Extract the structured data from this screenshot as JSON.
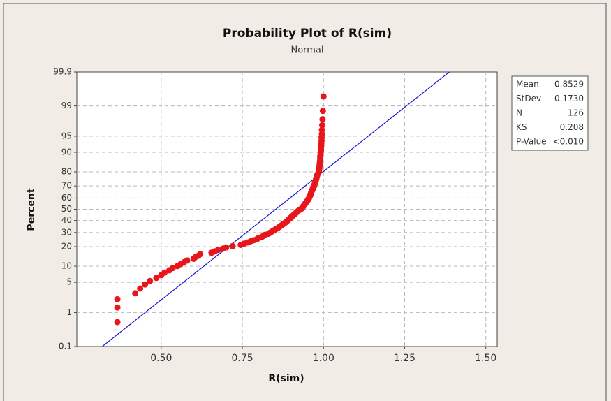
{
  "chart_data": {
    "type": "probability-plot",
    "title": "Probability Plot of R(sim)",
    "subtitle": "Normal",
    "x_label": "R(sim)",
    "y_label": "Percent",
    "scale": "normal-probability",
    "xlim": [
      0.24,
      1.535
    ],
    "xticks": [
      {
        "value": 0.5,
        "label": "0.50"
      },
      {
        "value": 0.75,
        "label": "0.75"
      },
      {
        "value": 1.0,
        "label": "1.00"
      },
      {
        "value": 1.25,
        "label": "1.25"
      },
      {
        "value": 1.5,
        "label": "1.50"
      }
    ],
    "ylim": [
      0.1,
      99.9
    ],
    "yticks": [
      0.1,
      1,
      5,
      10,
      20,
      30,
      40,
      50,
      60,
      70,
      80,
      90,
      95,
      99,
      99.9
    ],
    "grid": true,
    "point_color": "#e8161b",
    "line_color": "#1515d0",
    "values": [
      0.365,
      0.365,
      0.365,
      0.42,
      0.435,
      0.45,
      0.465,
      0.485,
      0.5,
      0.51,
      0.525,
      0.535,
      0.55,
      0.56,
      0.57,
      0.58,
      0.6,
      0.605,
      0.615,
      0.62,
      0.655,
      0.665,
      0.675,
      0.69,
      0.7,
      0.72,
      0.745,
      0.755,
      0.765,
      0.775,
      0.785,
      0.795,
      0.8,
      0.81,
      0.815,
      0.82,
      0.83,
      0.835,
      0.84,
      0.845,
      0.85,
      0.855,
      0.86,
      0.864,
      0.868,
      0.872,
      0.876,
      0.88,
      0.884,
      0.887,
      0.89,
      0.893,
      0.896,
      0.899,
      0.902,
      0.905,
      0.908,
      0.911,
      0.914,
      0.917,
      0.92,
      0.923,
      0.926,
      0.932,
      0.934,
      0.936,
      0.938,
      0.94,
      0.942,
      0.944,
      0.946,
      0.948,
      0.95,
      0.952,
      0.954,
      0.955,
      0.956,
      0.958,
      0.959,
      0.96,
      0.961,
      0.962,
      0.963,
      0.964,
      0.966,
      0.967,
      0.968,
      0.97,
      0.971,
      0.972,
      0.973,
      0.974,
      0.975,
      0.976,
      0.977,
      0.978,
      0.979,
      0.98,
      0.981,
      0.983,
      0.985,
      0.986,
      0.986,
      0.987,
      0.987,
      0.988,
      0.988,
      0.989,
      0.989,
      0.99,
      0.99,
      0.99,
      0.991,
      0.991,
      0.992,
      0.992,
      0.993,
      0.993,
      0.994,
      0.994,
      0.995,
      0.995,
      0.996,
      0.997,
      0.998,
      1.0
    ],
    "stats": [
      {
        "label": "Mean",
        "value": "0.8529"
      },
      {
        "label": "StDev",
        "value": "0.1730"
      },
      {
        "label": "N",
        "value": "126"
      },
      {
        "label": "KS",
        "value": "0.208"
      },
      {
        "label": "P-Value",
        "value": "<0.010"
      }
    ]
  }
}
